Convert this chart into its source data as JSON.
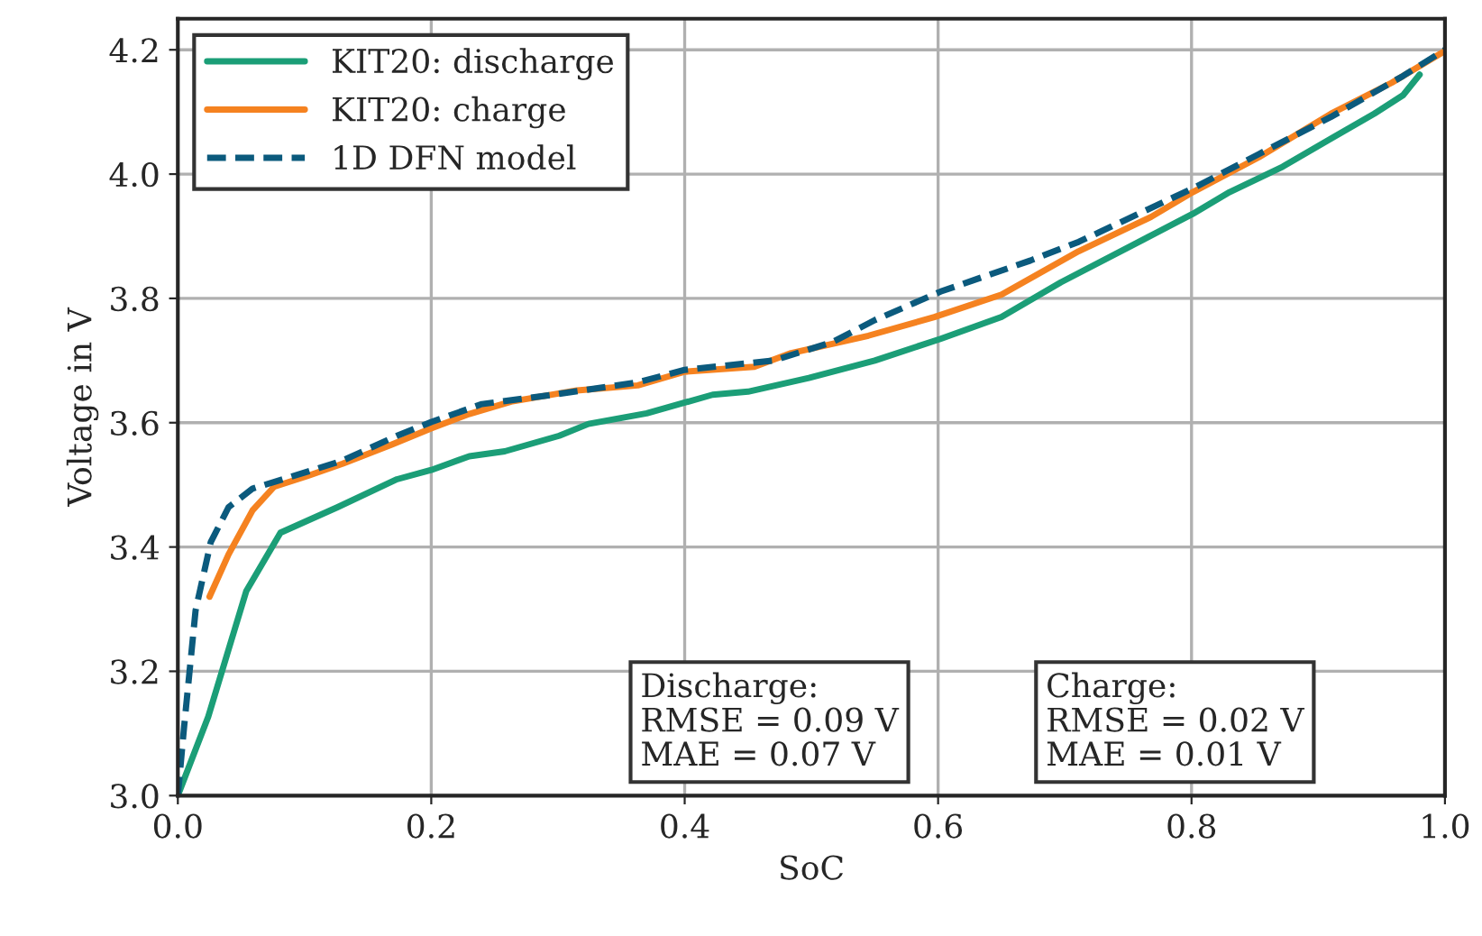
{
  "chart_data": {
    "type": "line",
    "xlabel": "SoC",
    "ylabel": "Voltage in V",
    "xlim": [
      0,
      1
    ],
    "ylim": [
      3.0,
      4.25
    ],
    "xticks": [
      {
        "value": 0,
        "label": "0.0"
      },
      0.2,
      0.4,
      0.6,
      0.8,
      {
        "value": 1,
        "label": "1.0"
      }
    ],
    "yticks": [
      {
        "value": 3,
        "label": "3.0"
      },
      3.2,
      3.4,
      3.6,
      3.8,
      {
        "value": 4,
        "label": "4.0"
      },
      4.2
    ],
    "grid": true,
    "legend": "top left",
    "marker": "none",
    "annotations": [
      "Discharge:\nRMSE = 0.09 V\nMAE = 0.07 V",
      "Charge:\nRMSE = 0.02 V\nMAE = 0.01 V"
    ],
    "series": [
      {
        "name": "KIT20: discharge",
        "color": "#1b9e77",
        "line_style": "solid",
        "x": [
          0,
          0.024,
          0.054,
          0.081,
          0.126,
          0.173,
          0.2,
          0.23,
          0.258,
          0.301,
          0.324,
          0.37,
          0.422,
          0.45,
          0.498,
          0.55,
          0.602,
          0.65,
          0.697,
          0.749,
          0.801,
          0.83,
          0.872,
          0.91,
          0.944,
          0.967,
          0.98
        ],
        "values": [
          3.0,
          3.127,
          3.329,
          3.423,
          3.464,
          3.509,
          3.524,
          3.546,
          3.554,
          3.579,
          3.598,
          3.615,
          3.645,
          3.65,
          3.672,
          3.7,
          3.735,
          3.77,
          3.826,
          3.881,
          3.936,
          3.971,
          4.012,
          4.057,
          4.097,
          4.127,
          4.16
        ]
      },
      {
        "name": "KIT20: charge",
        "color": "#f58220",
        "line_style": "solid",
        "x": [
          0.025,
          0.04,
          0.059,
          0.076,
          0.102,
          0.13,
          0.168,
          0.2,
          0.23,
          0.263,
          0.315,
          0.363,
          0.4,
          0.455,
          0.484,
          0.545,
          0.597,
          0.65,
          0.711,
          0.768,
          0.801,
          0.853,
          0.91,
          0.958,
          1.0
        ],
        "values": [
          3.32,
          3.388,
          3.459,
          3.497,
          3.514,
          3.534,
          3.564,
          3.591,
          3.614,
          3.634,
          3.652,
          3.66,
          3.682,
          3.69,
          3.712,
          3.74,
          3.77,
          3.806,
          3.876,
          3.931,
          3.971,
          4.027,
          4.097,
          4.147,
          4.198
        ]
      },
      {
        "name": "1D DFN model",
        "color": "#0b5a7d",
        "line_style": "dashed",
        "x": [
          0,
          0.005,
          0.014,
          0.026,
          0.04,
          0.059,
          0.083,
          0.13,
          0.173,
          0.2,
          0.24,
          0.296,
          0.363,
          0.4,
          0.47,
          0.517,
          0.55,
          0.602,
          0.673,
          0.711,
          0.801,
          0.853,
          0.91,
          0.967,
          1.0
        ],
        "values": [
          3.0,
          3.112,
          3.298,
          3.408,
          3.464,
          3.494,
          3.509,
          3.539,
          3.579,
          3.601,
          3.63,
          3.645,
          3.665,
          3.685,
          3.7,
          3.73,
          3.765,
          3.811,
          3.861,
          3.891,
          3.977,
          4.032,
          4.092,
          4.158,
          4.2
        ]
      }
    ]
  }
}
